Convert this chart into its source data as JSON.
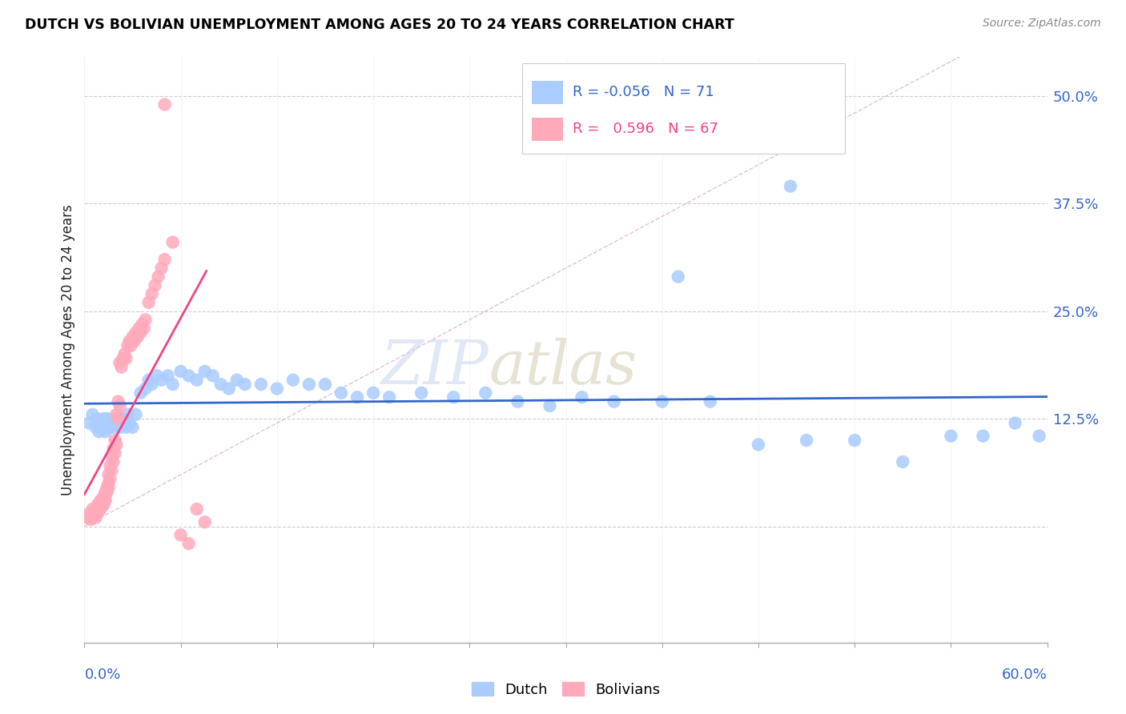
{
  "title": "DUTCH VS BOLIVIAN UNEMPLOYMENT AMONG AGES 20 TO 24 YEARS CORRELATION CHART",
  "source": "Source: ZipAtlas.com",
  "ylabel": "Unemployment Among Ages 20 to 24 years",
  "legend_dutch_R": "-0.056",
  "legend_dutch_N": "71",
  "legend_bolivians_R": "0.596",
  "legend_bolivians_N": "67",
  "dutch_color": "#aaccff",
  "bolivians_color": "#ffaabb",
  "dutch_line_color": "#3366cc",
  "bolivians_line_color": "#ee4488",
  "identity_line_color": "#ddbbcc",
  "watermark_zip_color": "#c8d4ee",
  "watermark_atlas_color": "#c8c0a0",
  "background_color": "#ffffff",
  "xmin": 0.0,
  "xmax": 0.6,
  "ymin": -0.135,
  "ymax": 0.545,
  "dutch_x": [
    0.003,
    0.005,
    0.007,
    0.008,
    0.009,
    0.01,
    0.011,
    0.012,
    0.013,
    0.014,
    0.015,
    0.016,
    0.017,
    0.018,
    0.019,
    0.02,
    0.021,
    0.022,
    0.023,
    0.024,
    0.025,
    0.026,
    0.027,
    0.028,
    0.03,
    0.032,
    0.035,
    0.038,
    0.04,
    0.042,
    0.045,
    0.048,
    0.052,
    0.055,
    0.06,
    0.065,
    0.07,
    0.075,
    0.08,
    0.085,
    0.09,
    0.095,
    0.1,
    0.11,
    0.12,
    0.13,
    0.14,
    0.15,
    0.16,
    0.17,
    0.18,
    0.19,
    0.21,
    0.23,
    0.25,
    0.27,
    0.29,
    0.31,
    0.33,
    0.36,
    0.39,
    0.42,
    0.45,
    0.48,
    0.51,
    0.54,
    0.56,
    0.58,
    0.595,
    0.37,
    0.44
  ],
  "dutch_y": [
    0.12,
    0.13,
    0.115,
    0.125,
    0.11,
    0.12,
    0.115,
    0.125,
    0.11,
    0.125,
    0.115,
    0.12,
    0.125,
    0.115,
    0.12,
    0.125,
    0.12,
    0.115,
    0.125,
    0.12,
    0.125,
    0.115,
    0.13,
    0.12,
    0.115,
    0.13,
    0.155,
    0.16,
    0.17,
    0.165,
    0.175,
    0.17,
    0.175,
    0.165,
    0.18,
    0.175,
    0.17,
    0.18,
    0.175,
    0.165,
    0.16,
    0.17,
    0.165,
    0.165,
    0.16,
    0.17,
    0.165,
    0.165,
    0.155,
    0.15,
    0.155,
    0.15,
    0.155,
    0.15,
    0.155,
    0.145,
    0.14,
    0.15,
    0.145,
    0.145,
    0.145,
    0.095,
    0.1,
    0.1,
    0.075,
    0.105,
    0.105,
    0.12,
    0.105,
    0.29,
    0.395
  ],
  "bolivians_x": [
    0.002,
    0.003,
    0.004,
    0.005,
    0.006,
    0.007,
    0.007,
    0.008,
    0.008,
    0.009,
    0.009,
    0.01,
    0.01,
    0.011,
    0.011,
    0.012,
    0.012,
    0.013,
    0.013,
    0.013,
    0.014,
    0.014,
    0.015,
    0.015,
    0.015,
    0.016,
    0.016,
    0.017,
    0.017,
    0.018,
    0.018,
    0.019,
    0.019,
    0.02,
    0.02,
    0.021,
    0.021,
    0.022,
    0.022,
    0.023,
    0.024,
    0.025,
    0.026,
    0.027,
    0.028,
    0.029,
    0.03,
    0.031,
    0.032,
    0.033,
    0.034,
    0.035,
    0.036,
    0.037,
    0.038,
    0.04,
    0.042,
    0.044,
    0.046,
    0.048,
    0.05,
    0.055,
    0.06,
    0.065,
    0.07,
    0.075,
    0.05
  ],
  "bolivians_y": [
    0.01,
    0.015,
    0.008,
    0.02,
    0.015,
    0.01,
    0.02,
    0.015,
    0.025,
    0.018,
    0.025,
    0.02,
    0.03,
    0.025,
    0.03,
    0.025,
    0.035,
    0.03,
    0.04,
    0.035,
    0.045,
    0.04,
    0.045,
    0.05,
    0.06,
    0.055,
    0.07,
    0.065,
    0.08,
    0.075,
    0.09,
    0.085,
    0.1,
    0.095,
    0.13,
    0.125,
    0.145,
    0.14,
    0.19,
    0.185,
    0.195,
    0.2,
    0.195,
    0.21,
    0.215,
    0.21,
    0.22,
    0.215,
    0.225,
    0.22,
    0.23,
    0.225,
    0.235,
    0.23,
    0.24,
    0.26,
    0.27,
    0.28,
    0.29,
    0.3,
    0.31,
    0.33,
    -0.01,
    -0.02,
    0.02,
    0.005,
    0.49
  ]
}
